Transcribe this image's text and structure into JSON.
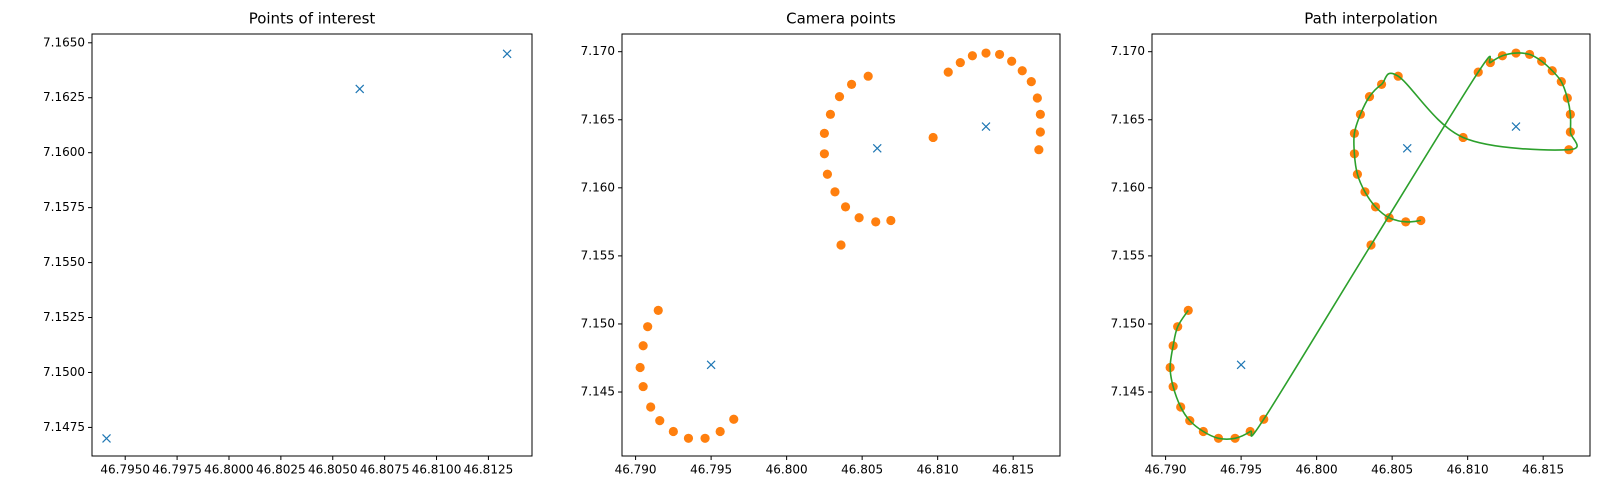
{
  "chart_data": [
    {
      "type": "scatter",
      "title": "Points of interest",
      "xlim": [
        46.7934,
        46.8146
      ],
      "ylim": [
        7.1462,
        7.1654
      ],
      "xticks": [
        {
          "value": 46.795,
          "label": "46.7950"
        },
        46.7975,
        {
          "value": 46.8,
          "label": "46.8000"
        },
        46.8025,
        {
          "value": 46.805,
          "label": "46.8050"
        },
        46.8075,
        {
          "value": 46.81,
          "label": "46.8100"
        },
        46.8125
      ],
      "yticks": [
        7.1475,
        {
          "value": 7.15,
          "label": "7.1500"
        },
        7.1525,
        {
          "value": 7.155,
          "label": "7.1550"
        },
        7.1575,
        {
          "value": 7.16,
          "label": "7.1600"
        },
        7.1625,
        {
          "value": 7.165,
          "label": "7.1650"
        }
      ],
      "series": [
        {
          "marker": "x",
          "color": "#1f77b4",
          "x": [
            46.7941,
            46.8063,
            46.8134
          ],
          "values": [
            7.147,
            7.1629,
            7.1645
          ]
        }
      ]
    },
    {
      "type": "scatter",
      "title": "Camera points",
      "xlim": [
        46.7891,
        46.8181
      ],
      "ylim": [
        7.1403,
        7.1713
      ],
      "xticks": [
        {
          "value": 46.79,
          "label": "46.790"
        },
        46.795,
        {
          "value": 46.8,
          "label": "46.800"
        },
        46.805,
        {
          "value": 46.81,
          "label": "46.810"
        },
        46.815
      ],
      "yticks": [
        7.145,
        {
          "value": 7.15,
          "label": "7.150"
        },
        7.155,
        {
          "value": 7.16,
          "label": "7.160"
        },
        7.165,
        {
          "value": 7.17,
          "label": "7.170"
        }
      ],
      "series": [
        {
          "marker": "x",
          "color": "#1f77b4",
          "x": [
            46.795,
            46.806,
            46.8132
          ],
          "values": [
            7.147,
            7.1629,
            7.1645
          ]
        },
        {
          "marker": "o",
          "color": "#ff7f0e",
          "x": [
            46.7915,
            46.7908,
            46.7905,
            46.7903,
            46.7905,
            46.791,
            46.7916,
            46.7925,
            46.7935,
            46.7946,
            46.7956,
            46.7965,
            46.8036,
            46.8107,
            46.8115,
            46.8123,
            46.8132,
            46.8141,
            46.8149,
            46.8156,
            46.8162,
            46.8166,
            46.8168,
            46.8168,
            46.8167,
            46.8097,
            46.8054,
            46.8043,
            46.8035,
            46.8029,
            46.8025,
            46.8025,
            46.8027,
            46.8032,
            46.8039,
            46.8048,
            46.8059,
            46.8069
          ],
          "values": [
            7.151,
            7.1498,
            7.1484,
            7.1468,
            7.1454,
            7.1439,
            7.1429,
            7.1421,
            7.1416,
            7.1416,
            7.1421,
            7.143,
            7.1558,
            7.1685,
            7.1692,
            7.1697,
            7.1699,
            7.1698,
            7.1693,
            7.1686,
            7.1678,
            7.1666,
            7.1654,
            7.1641,
            7.1628,
            7.1637,
            7.1682,
            7.1676,
            7.1667,
            7.1654,
            7.164,
            7.1625,
            7.161,
            7.1597,
            7.1586,
            7.1578,
            7.1575,
            7.1576
          ]
        }
      ]
    },
    {
      "type": "scatter",
      "title": "Path interpolation",
      "xlim": [
        46.7891,
        46.8181
      ],
      "ylim": [
        7.1403,
        7.1713
      ],
      "xticks": [
        {
          "value": 46.79,
          "label": "46.790"
        },
        46.795,
        {
          "value": 46.8,
          "label": "46.800"
        },
        46.805,
        {
          "value": 46.81,
          "label": "46.810"
        },
        46.815
      ],
      "yticks": [
        7.145,
        {
          "value": 7.15,
          "label": "7.150"
        },
        7.155,
        {
          "value": 7.16,
          "label": "7.160"
        },
        7.165,
        {
          "value": 7.17,
          "label": "7.170"
        }
      ],
      "series": [
        {
          "marker": "o",
          "color": "#ff7f0e",
          "x": [
            46.7915,
            46.7908,
            46.7905,
            46.7903,
            46.7905,
            46.791,
            46.7916,
            46.7925,
            46.7935,
            46.7946,
            46.7956,
            46.7965,
            46.8036,
            46.8107,
            46.8115,
            46.8123,
            46.8132,
            46.8141,
            46.8149,
            46.8156,
            46.8162,
            46.8166,
            46.8168,
            46.8168,
            46.8167,
            46.8097,
            46.8054,
            46.8043,
            46.8035,
            46.8029,
            46.8025,
            46.8025,
            46.8027,
            46.8032,
            46.8039,
            46.8048,
            46.8059,
            46.8069
          ],
          "values": [
            7.151,
            7.1498,
            7.1484,
            7.1468,
            7.1454,
            7.1439,
            7.1429,
            7.1421,
            7.1416,
            7.1416,
            7.1421,
            7.143,
            7.1558,
            7.1685,
            7.1692,
            7.1697,
            7.1699,
            7.1698,
            7.1693,
            7.1686,
            7.1678,
            7.1666,
            7.1654,
            7.1641,
            7.1628,
            7.1637,
            7.1682,
            7.1676,
            7.1667,
            7.1654,
            7.164,
            7.1625,
            7.161,
            7.1597,
            7.1586,
            7.1578,
            7.1575,
            7.1576
          ]
        },
        {
          "marker": "line",
          "color": "#2ca02c",
          "x": [
            46.7915,
            46.7908,
            46.7905,
            46.7903,
            46.7905,
            46.791,
            46.7916,
            46.7925,
            46.7935,
            46.7946,
            46.7956,
            46.7965,
            46.8036,
            46.8107,
            46.8115,
            46.8123,
            46.8132,
            46.8141,
            46.8149,
            46.8156,
            46.8162,
            46.8166,
            46.8168,
            46.8168,
            46.8167,
            46.8097,
            46.8054,
            46.8043,
            46.8035,
            46.8029,
            46.8025,
            46.8025,
            46.8027,
            46.8032,
            46.8039,
            46.8048,
            46.8059,
            46.8069
          ],
          "values": [
            7.151,
            7.1498,
            7.1484,
            7.1468,
            7.1454,
            7.1439,
            7.1429,
            7.1421,
            7.1416,
            7.1416,
            7.1421,
            7.143,
            7.1558,
            7.1685,
            7.1692,
            7.1697,
            7.1699,
            7.1698,
            7.1693,
            7.1686,
            7.1678,
            7.1666,
            7.1654,
            7.1641,
            7.1628,
            7.1637,
            7.1682,
            7.1676,
            7.1667,
            7.1654,
            7.164,
            7.1625,
            7.161,
            7.1597,
            7.1586,
            7.1578,
            7.1575,
            7.1576
          ]
        },
        {
          "marker": "x",
          "color": "#1f77b4",
          "x": [
            46.795,
            46.806,
            46.8132
          ],
          "values": [
            7.147,
            7.1629,
            7.1645
          ]
        }
      ]
    }
  ]
}
